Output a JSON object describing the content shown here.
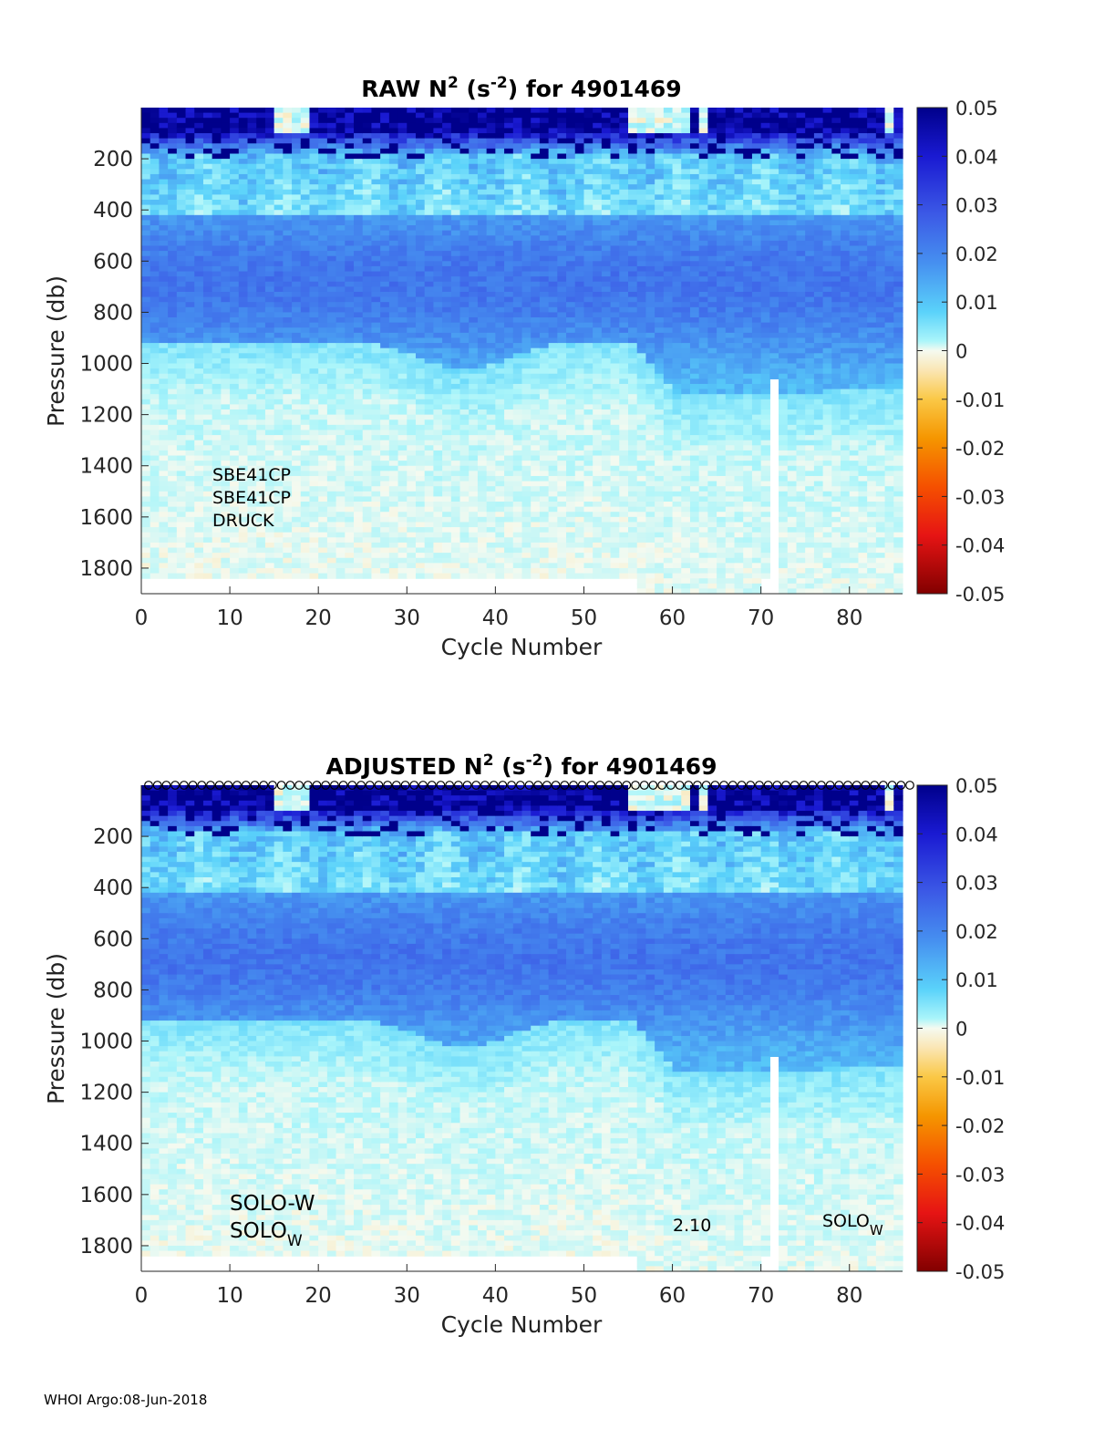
{
  "chart_data": [
    {
      "type": "heatmap",
      "panel": "raw",
      "title": {
        "prefix": "RAW N",
        "sup1": "2",
        "mid": " (s",
        "sup2": "-2",
        "suffix": ") for 4901469"
      },
      "xlabel": "Cycle Number",
      "ylabel": "Pressure (db)",
      "xlim": [
        0,
        86
      ],
      "ylim": [
        1900,
        0
      ],
      "xticks": [
        0,
        10,
        20,
        30,
        40,
        50,
        60,
        70,
        80
      ],
      "yticks": [
        200,
        400,
        600,
        800,
        1000,
        1200,
        1400,
        1600,
        1800
      ],
      "colorbar": {
        "min": -0.05,
        "max": 0.05,
        "ticks": [
          "0.05",
          "0.04",
          "0.03",
          "0.02",
          "0.01",
          "0",
          "-0.01",
          "-0.02",
          "-0.03",
          "-0.04",
          "-0.05"
        ]
      },
      "cycles": 86,
      "max_pressure": 1900,
      "profile_depth": [
        {
          "from": 0,
          "to": 56,
          "depth": 1840
        },
        {
          "from": 56,
          "to": 70,
          "depth": 1900
        },
        {
          "from": 70,
          "to": 71,
          "depth": 1840
        },
        {
          "from": 71,
          "to": 72,
          "depth": 1900
        },
        {
          "from": 72,
          "to": 86,
          "depth": 1900
        }
      ],
      "gap": {
        "cycle": 71,
        "from": 1050,
        "to": 1900
      },
      "annotations": [
        "SBE41CP",
        "SBE41CP",
        "DRUCK"
      ]
    },
    {
      "type": "heatmap",
      "panel": "adjusted",
      "title": {
        "prefix": "ADJUSTED N",
        "sup1": "2",
        "mid": " (s",
        "sup2": "-2",
        "suffix": ") for 4901469"
      },
      "xlabel": "Cycle Number",
      "ylabel": "Pressure (db)",
      "xlim": [
        0,
        86
      ],
      "ylim": [
        1900,
        0
      ],
      "xticks": [
        0,
        10,
        20,
        30,
        40,
        50,
        60,
        70,
        80
      ],
      "yticks": [
        200,
        400,
        600,
        800,
        1000,
        1200,
        1400,
        1600,
        1800
      ],
      "colorbar": {
        "min": -0.05,
        "max": 0.05,
        "ticks": [
          "0.05",
          "0.04",
          "0.03",
          "0.02",
          "0.01",
          "0",
          "-0.01",
          "-0.02",
          "-0.03",
          "-0.04",
          "-0.05"
        ]
      },
      "cycles": 86,
      "max_pressure": 1900,
      "profile_depth": [
        {
          "from": 0,
          "to": 56,
          "depth": 1840
        },
        {
          "from": 56,
          "to": 70,
          "depth": 1900
        },
        {
          "from": 70,
          "to": 71,
          "depth": 1840
        },
        {
          "from": 71,
          "to": 72,
          "depth": 1900
        },
        {
          "from": 72,
          "to": 86,
          "depth": 1900
        }
      ],
      "gap": {
        "cycle": 71,
        "from": 1050,
        "to": 1900
      },
      "qc_markers": "open circles at surface for each cycle",
      "annotations": {
        "left_line1": "SOLO-W",
        "left_line2": "SOLO",
        "left_line2_sub": "W",
        "mid": "2.10",
        "right": "SOLO",
        "right_sub": "W"
      }
    }
  ],
  "footer": "WHOI Argo:08-Jun-2018"
}
